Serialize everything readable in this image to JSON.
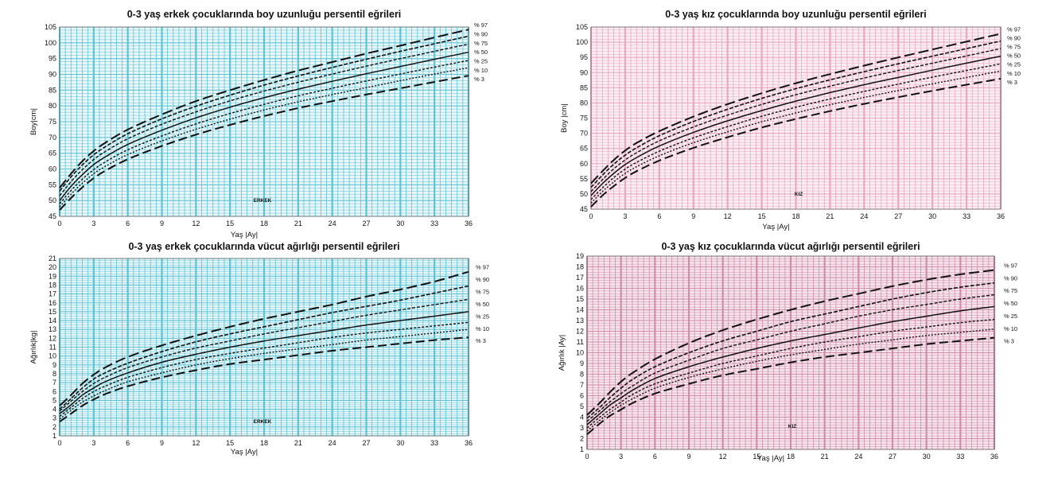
{
  "chart_data": [
    {
      "id": "boy-erkek",
      "type": "line",
      "title": "0-3 yaş erkek çocuklarında boy uzunluğu persentil eğrileri",
      "xlabel": "Yaş |Ay|",
      "ylabel": "Boy|cm|",
      "sex_label": "ERKEK",
      "xlim": [
        0,
        36
      ],
      "ylim": [
        45,
        105
      ],
      "xticks": [
        0,
        3,
        6,
        9,
        12,
        15,
        18,
        21,
        24,
        27,
        30,
        33,
        36
      ],
      "yticks": [
        45,
        50,
        55,
        60,
        65,
        70,
        75,
        80,
        85,
        90,
        95,
        100,
        105
      ],
      "grid": true,
      "colors": {
        "grid": "#5ec3d3",
        "background": "#e9f7fa",
        "line": "#111111"
      },
      "x": [
        0,
        1,
        2,
        3,
        4,
        6,
        9,
        12,
        15,
        18,
        21,
        24,
        27,
        30,
        33,
        36
      ],
      "series": [
        {
          "name": "% 97",
          "values": [
            54,
            58.5,
            62.5,
            65.7,
            68.3,
            72.5,
            77.3,
            81.5,
            85,
            88.2,
            91.2,
            93.9,
            96.6,
            99.1,
            101.7,
            104.2
          ]
        },
        {
          "name": "% 90",
          "values": [
            53,
            57.5,
            61.3,
            64.5,
            67,
            71.2,
            75.9,
            79.9,
            83.4,
            86.6,
            89.5,
            92.2,
            94.8,
            97.3,
            99.7,
            102.1
          ]
        },
        {
          "name": "% 75",
          "values": [
            51.5,
            56,
            59.8,
            63,
            65.5,
            69.6,
            74.2,
            78.1,
            81.6,
            84.7,
            87.5,
            90.1,
            92.6,
            95,
            97.3,
            99.6
          ]
        },
        {
          "name": "% 50",
          "values": [
            50,
            54.5,
            58.2,
            61.4,
            63.8,
            67.8,
            72.3,
            76.2,
            79.6,
            82.6,
            85.3,
            87.8,
            90.2,
            92.5,
            94.8,
            97
          ]
        },
        {
          "name": "% 25",
          "values": [
            49,
            53.2,
            56.8,
            59.8,
            62.2,
            66.1,
            70.5,
            74.3,
            77.6,
            80.5,
            83.2,
            85.6,
            87.9,
            90.1,
            92.3,
            94.4
          ]
        },
        {
          "name": "% 10",
          "values": [
            48,
            52,
            55.5,
            58.5,
            60.8,
            64.6,
            68.9,
            72.6,
            75.8,
            78.7,
            81.3,
            83.6,
            85.8,
            88,
            90.1,
            92.1
          ]
        },
        {
          "name": "% 3",
          "values": [
            47,
            50.8,
            54.2,
            57.1,
            59.4,
            63.1,
            67.3,
            70.9,
            74,
            76.8,
            79.3,
            81.5,
            83.6,
            85.6,
            87.6,
            89.6
          ]
        }
      ]
    },
    {
      "id": "boy-kiz",
      "type": "line",
      "title": "0-3 yaş kız çocuklarında boy uzunluğu persentil eğrileri",
      "xlabel": "Yaş |Ay|",
      "ylabel": "Boy |cm|",
      "sex_label": "KIZ",
      "xlim": [
        0,
        36
      ],
      "ylim": [
        45,
        105
      ],
      "xticks": [
        0,
        3,
        6,
        9,
        12,
        15,
        18,
        21,
        24,
        27,
        30,
        33,
        36
      ],
      "yticks": [
        45,
        50,
        55,
        60,
        65,
        70,
        75,
        80,
        85,
        90,
        95,
        100,
        105
      ],
      "grid": true,
      "colors": {
        "grid": "#e7a8c0",
        "background": "#fbeef3",
        "line": "#111111"
      },
      "x": [
        0,
        1,
        2,
        3,
        4,
        6,
        9,
        12,
        15,
        18,
        21,
        24,
        27,
        30,
        33,
        36
      ],
      "series": [
        {
          "name": "% 97",
          "values": [
            53.5,
            57.5,
            61.2,
            64.3,
            66.8,
            70.7,
            75.5,
            79.6,
            83.2,
            86.5,
            89.5,
            92.3,
            95,
            97.6,
            100.2,
            102.8
          ]
        },
        {
          "name": "% 90",
          "values": [
            52.2,
            56.2,
            59.8,
            62.8,
            65.2,
            69.2,
            73.9,
            77.9,
            81.5,
            84.7,
            87.6,
            90.3,
            92.9,
            95.4,
            97.9,
            100.4
          ]
        },
        {
          "name": "% 75",
          "values": [
            50.8,
            54.7,
            58.3,
            61.2,
            63.6,
            67.5,
            72.1,
            76,
            79.5,
            82.7,
            85.5,
            88.2,
            90.7,
            93.1,
            95.5,
            97.9
          ]
        },
        {
          "name": "% 50",
          "values": [
            49.5,
            53.4,
            56.8,
            59.7,
            62,
            65.8,
            70.3,
            74.1,
            77.5,
            80.6,
            83.4,
            86,
            88.4,
            90.8,
            93.1,
            95.4
          ]
        },
        {
          "name": "% 25",
          "values": [
            48.2,
            52,
            55.4,
            58.2,
            60.4,
            64.1,
            68.5,
            72.2,
            75.6,
            78.6,
            81.3,
            83.8,
            86.2,
            88.5,
            90.7,
            92.9
          ]
        },
        {
          "name": "% 10",
          "values": [
            47,
            50.8,
            54,
            56.8,
            59,
            62.6,
            66.9,
            70.5,
            73.8,
            76.7,
            79.4,
            81.8,
            84.1,
            86.3,
            88.4,
            90.5
          ]
        },
        {
          "name": "% 3",
          "values": [
            45.8,
            49.5,
            52.6,
            55.3,
            57.5,
            61,
            65.2,
            68.7,
            71.9,
            74.7,
            77.3,
            79.7,
            81.9,
            84,
            86,
            88
          ]
        }
      ]
    },
    {
      "id": "agirlik-erkek",
      "type": "line",
      "title": "0-3 yaş erkek çocuklarında vücut ağırlığı persentil eğrileri",
      "xlabel": "Yaş |Ay|",
      "ylabel": "Ağırlık|kg|",
      "sex_label": "ERKEK",
      "xlim": [
        0,
        36
      ],
      "ylim": [
        1,
        21
      ],
      "xticks": [
        0,
        3,
        6,
        9,
        12,
        15,
        18,
        21,
        24,
        27,
        30,
        33,
        36
      ],
      "yticks": [
        1,
        2,
        3,
        4,
        5,
        6,
        7,
        8,
        9,
        10,
        11,
        12,
        13,
        14,
        15,
        16,
        17,
        18,
        19,
        20,
        21
      ],
      "grid": true,
      "colors": {
        "grid": "#5ec3d3",
        "background": "#e9f7fa",
        "line": "#111111"
      },
      "x": [
        0,
        1,
        2,
        3,
        4,
        6,
        9,
        12,
        15,
        18,
        21,
        24,
        27,
        30,
        33,
        36
      ],
      "series": [
        {
          "name": "% 97",
          "values": [
            4.4,
            5.6,
            6.9,
            7.9,
            8.7,
            9.9,
            11.2,
            12.3,
            13.3,
            14.2,
            15,
            15.8,
            16.7,
            17.5,
            18.4,
            19.5
          ]
        },
        {
          "name": "% 90",
          "values": [
            4,
            5.2,
            6.4,
            7.4,
            8.1,
            9.2,
            10.5,
            11.6,
            12.5,
            13.3,
            14.1,
            14.9,
            15.6,
            16.3,
            17.1,
            17.9
          ]
        },
        {
          "name": "% 75",
          "values": [
            3.8,
            4.9,
            6,
            6.9,
            7.6,
            8.7,
            9.9,
            10.9,
            11.7,
            12.5,
            13.2,
            13.9,
            14.6,
            15.2,
            15.8,
            16.4
          ]
        },
        {
          "name": "% 50",
          "values": [
            3.5,
            4.5,
            5.6,
            6.4,
            7.1,
            8.1,
            9.3,
            10.2,
            11,
            11.7,
            12.3,
            12.9,
            13.5,
            14,
            14.5,
            15
          ]
        },
        {
          "name": "% 25",
          "values": [
            3.2,
            4.2,
            5.2,
            6,
            6.6,
            7.6,
            8.7,
            9.6,
            10.3,
            10.9,
            11.5,
            12.1,
            12.6,
            13,
            13.4,
            13.8
          ]
        },
        {
          "name": "% 10",
          "values": [
            2.9,
            3.9,
            4.8,
            5.5,
            6.1,
            7.1,
            8.1,
            9,
            9.7,
            10.3,
            10.8,
            11.3,
            11.8,
            12.2,
            12.6,
            13
          ]
        },
        {
          "name": "% 3",
          "values": [
            2.6,
            3.5,
            4.4,
            5.1,
            5.7,
            6.6,
            7.6,
            8.4,
            9.1,
            9.6,
            10.1,
            10.6,
            11,
            11.4,
            11.8,
            12.1
          ]
        }
      ]
    },
    {
      "id": "agirlik-kiz",
      "type": "line",
      "title": "0-3 yaş kız çocuklarında vücut ağırlığı persentil eğrileri",
      "xlabel": "Yaş |Ay|",
      "ylabel": "Ağırlık |Ay|",
      "sex_label": "KIZ",
      "xlim": [
        0,
        36
      ],
      "ylim": [
        1,
        19
      ],
      "xticks": [
        0,
        3,
        6,
        9,
        12,
        15,
        18,
        21,
        24,
        27,
        30,
        33,
        36
      ],
      "yticks": [
        1,
        2,
        3,
        4,
        5,
        6,
        7,
        8,
        9,
        10,
        11,
        12,
        13,
        14,
        15,
        16,
        17,
        18,
        19
      ],
      "grid": true,
      "colors": {
        "grid": "#cf8da8",
        "background": "#f6e4ec",
        "line": "#111111"
      },
      "x": [
        0,
        1,
        2,
        3,
        4,
        6,
        9,
        12,
        15,
        18,
        21,
        24,
        27,
        30,
        33,
        36
      ],
      "series": [
        {
          "name": "% 97",
          "values": [
            4.2,
            5.2,
            6.3,
            7.3,
            8.1,
            9.4,
            10.9,
            12.1,
            13.1,
            14,
            14.8,
            15.5,
            16.2,
            16.8,
            17.3,
            17.7
          ]
        },
        {
          "name": "% 90",
          "values": [
            3.9,
            4.8,
            5.8,
            6.7,
            7.5,
            8.7,
            10,
            11.1,
            12,
            12.9,
            13.6,
            14.3,
            15,
            15.6,
            16.1,
            16.5
          ]
        },
        {
          "name": "% 75",
          "values": [
            3.6,
            4.5,
            5.4,
            6.2,
            6.9,
            8.1,
            9.3,
            10.4,
            11.2,
            12,
            12.7,
            13.4,
            14,
            14.5,
            15,
            15.4
          ]
        },
        {
          "name": "% 50",
          "values": [
            3.3,
            4.2,
            5.1,
            5.8,
            6.5,
            7.6,
            8.7,
            9.6,
            10.4,
            11.1,
            11.7,
            12.3,
            12.9,
            13.4,
            13.9,
            14.3
          ]
        },
        {
          "name": "% 25",
          "values": [
            3,
            3.9,
            4.7,
            5.4,
            6.1,
            7.1,
            8.1,
            9,
            9.7,
            10.4,
            11,
            11.5,
            12,
            12.4,
            12.8,
            13.1
          ]
        },
        {
          "name": "% 10",
          "values": [
            2.7,
            3.6,
            4.4,
            5.1,
            5.7,
            6.7,
            7.7,
            8.5,
            9.2,
            9.8,
            10.3,
            10.8,
            11.2,
            11.6,
            11.9,
            12.2
          ]
        },
        {
          "name": "% 3",
          "values": [
            2.4,
            3.3,
            4.1,
            4.7,
            5.3,
            6.2,
            7.1,
            7.9,
            8.5,
            9.1,
            9.6,
            10,
            10.4,
            10.8,
            11.1,
            11.4
          ]
        }
      ]
    }
  ]
}
